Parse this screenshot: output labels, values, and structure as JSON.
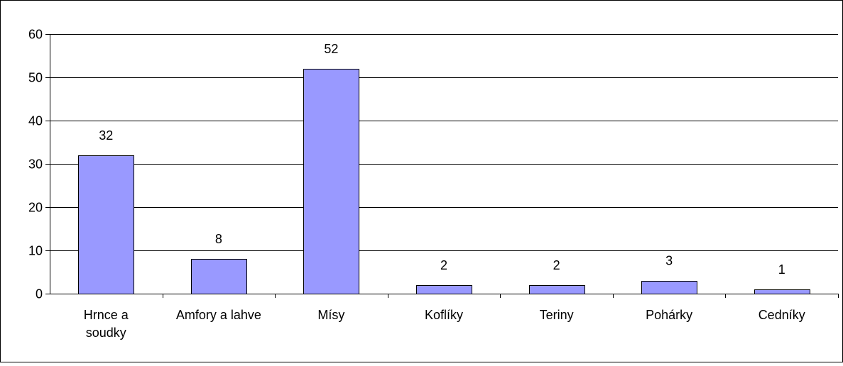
{
  "colors": {
    "bar_fill": "#9999ff",
    "bar_stroke": "#000000",
    "grid": "#000000",
    "background": "#ffffff"
  },
  "chart_data": {
    "type": "bar",
    "title": "",
    "xlabel": "",
    "ylabel": "",
    "categories": [
      [
        "Hrnce a",
        "soudky"
      ],
      [
        "Amfory a lahve"
      ],
      [
        "Mísy"
      ],
      [
        "Koflíky"
      ],
      [
        "Teriny"
      ],
      [
        "Pohárky"
      ],
      [
        "Cedníky"
      ]
    ],
    "values": [
      32,
      8,
      52,
      2,
      2,
      3,
      1
    ],
    "data_labels": [
      "32",
      "8",
      "52",
      "2",
      "2",
      "3",
      "1"
    ],
    "ylim": [
      0,
      60
    ],
    "yticks": [
      0,
      10,
      20,
      30,
      40,
      50,
      60
    ],
    "grid": true,
    "legend": "none"
  }
}
